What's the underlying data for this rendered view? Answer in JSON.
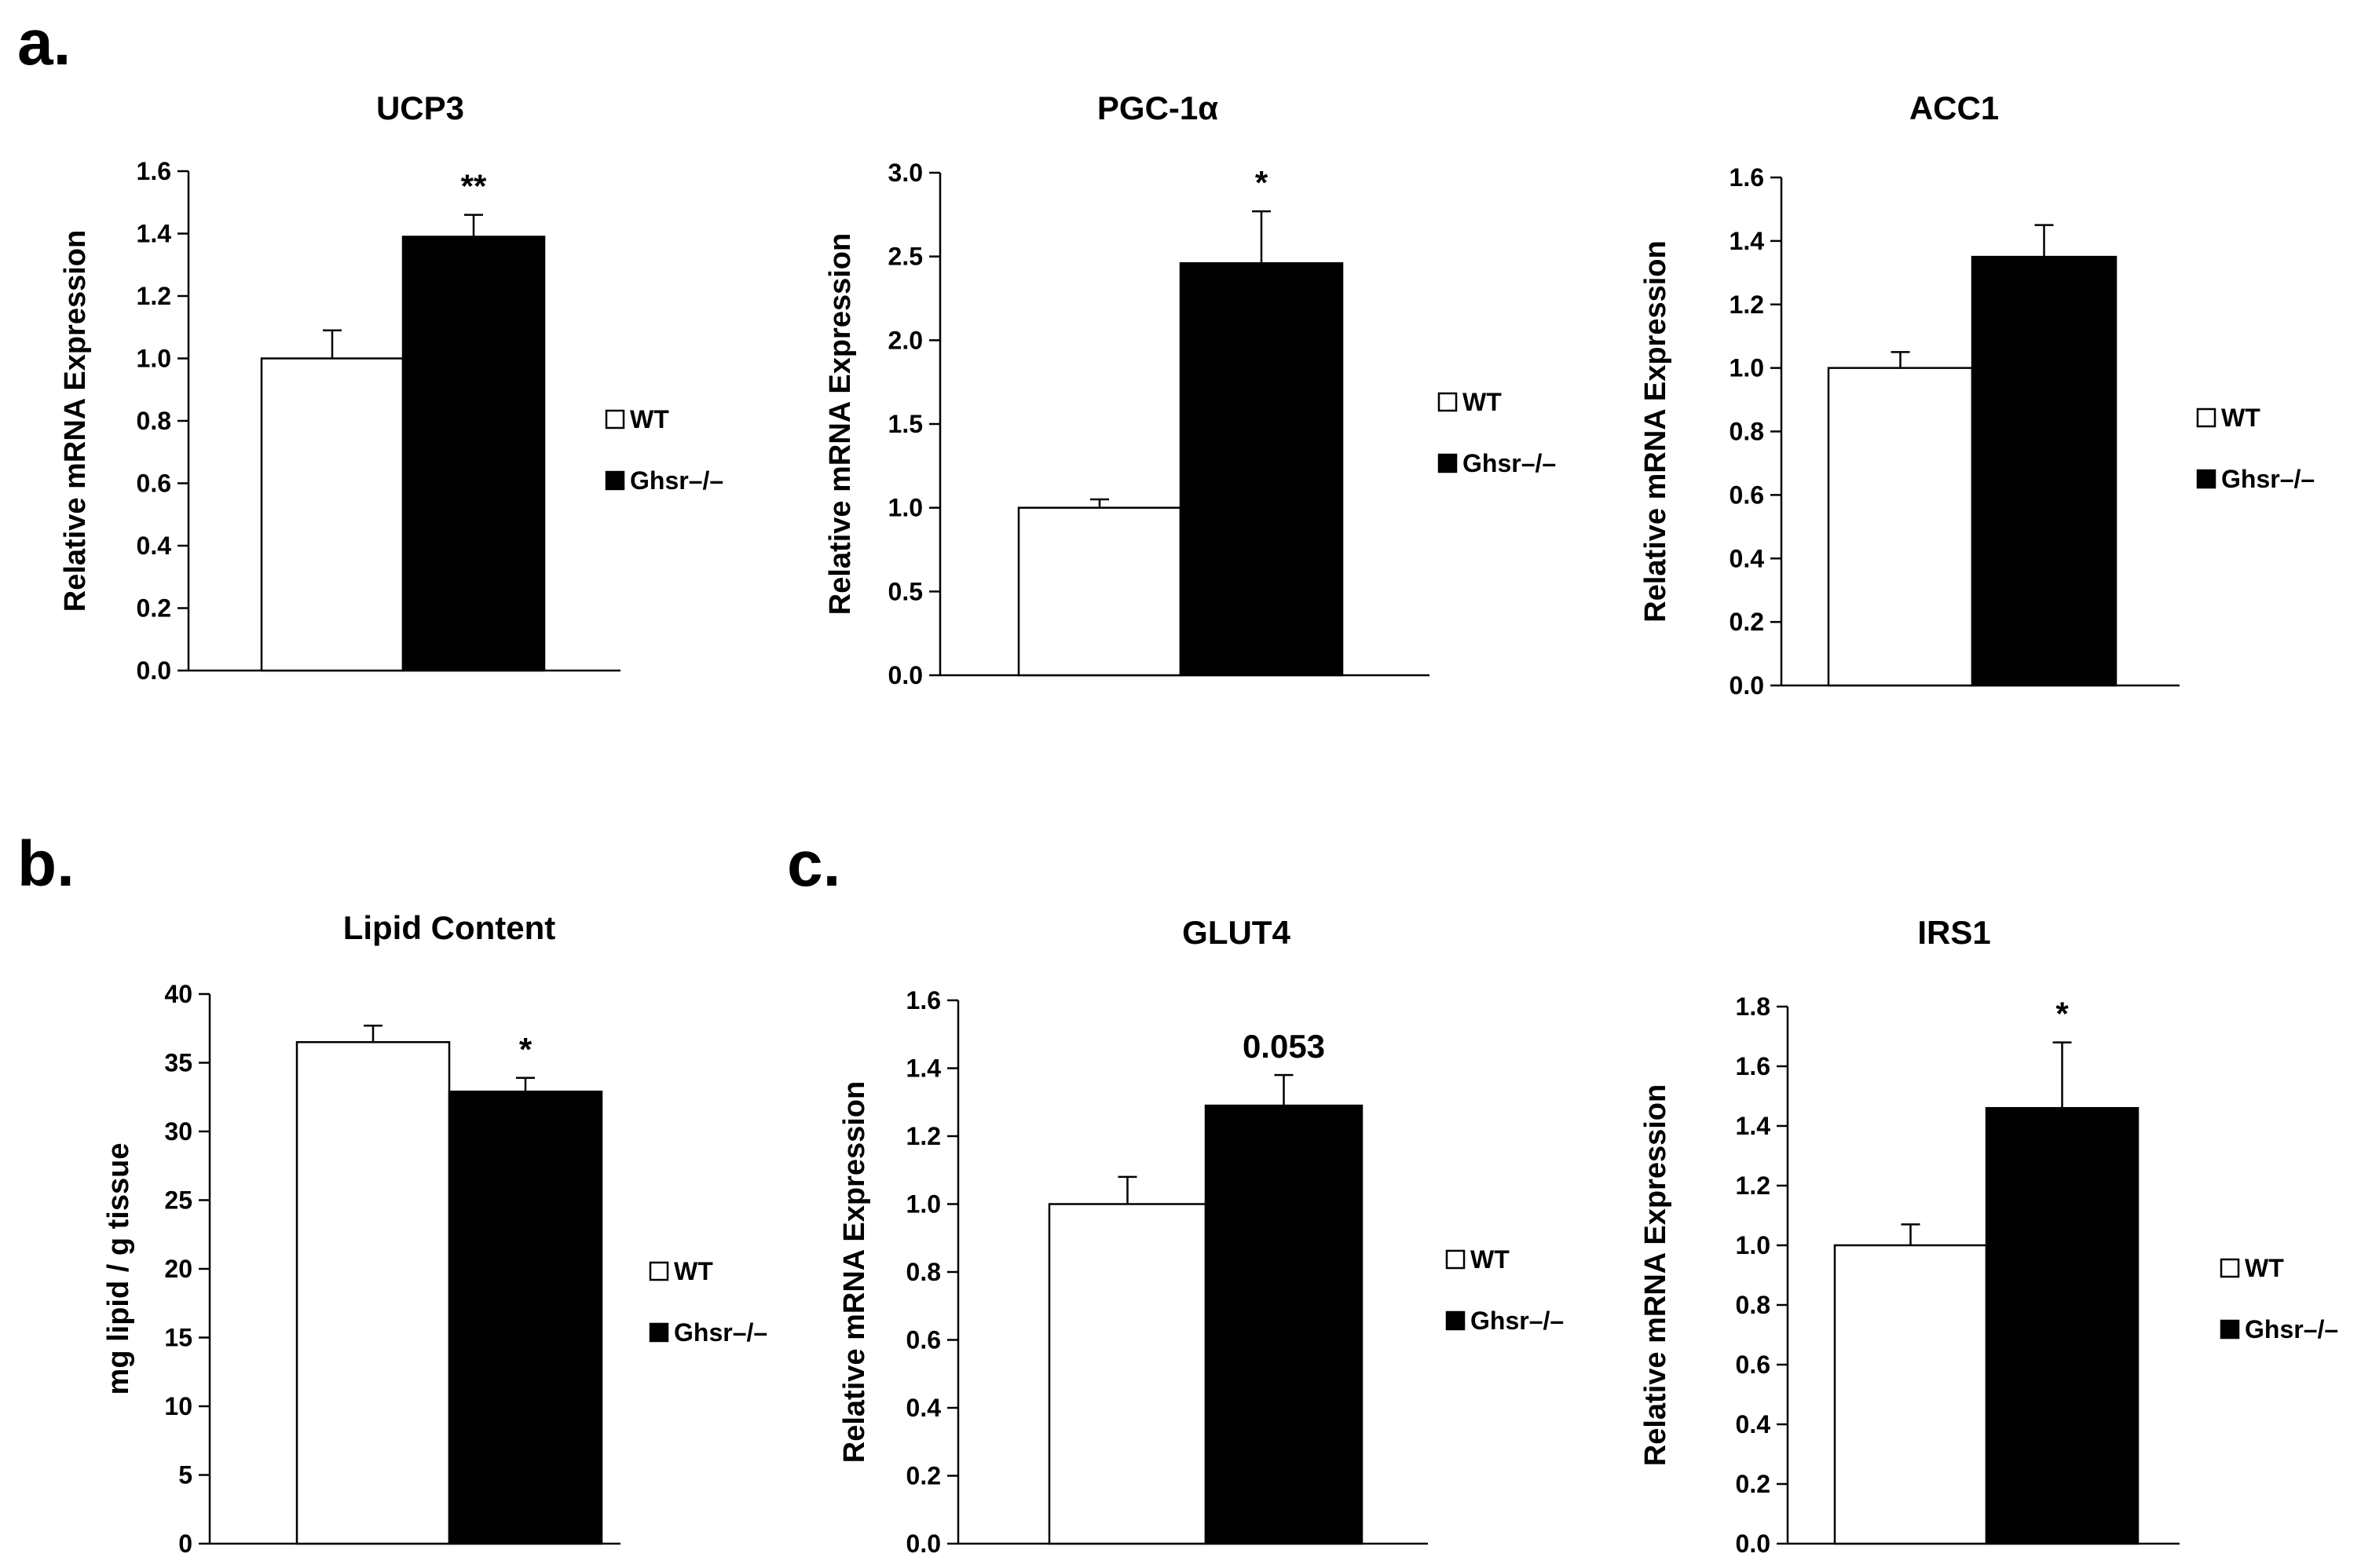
{
  "panel_labels": [
    "a.",
    "b.",
    "c."
  ],
  "legend": {
    "items": [
      {
        "label": "WT",
        "color": "#ffffff"
      },
      {
        "label": "Ghsr–/–",
        "color": "#000000"
      }
    ]
  },
  "chart_data": [
    {
      "type": "bar",
      "title": "UCP3",
      "ylabel": "Relative mRNA Expression",
      "xlabel": "",
      "ylim": [
        0,
        1.6
      ],
      "yticks": [
        "0.0",
        "0.2",
        "0.4",
        "0.6",
        "0.8",
        "1.0",
        "1.2",
        "1.4",
        "1.6"
      ],
      "categories": [
        "WT",
        "Ghsr–/–"
      ],
      "values": [
        1.0,
        1.39
      ],
      "errors": [
        0.09,
        0.07
      ],
      "colors": [
        "#ffffff",
        "#000000"
      ],
      "annotation": "**",
      "annotation_on": 1
    },
    {
      "type": "bar",
      "title": "PGC-1α",
      "ylabel": "Relative mRNA Expression",
      "xlabel": "",
      "ylim": [
        0,
        3.0
      ],
      "yticks": [
        "0.0",
        "0.5",
        "1.0",
        "1.5",
        "2.0",
        "2.5",
        "3.0"
      ],
      "categories": [
        "WT",
        "Ghsr–/–"
      ],
      "values": [
        1.0,
        2.46
      ],
      "errors": [
        0.05,
        0.31
      ],
      "colors": [
        "#ffffff",
        "#000000"
      ],
      "annotation": "*",
      "annotation_on": 1
    },
    {
      "type": "bar",
      "title": "ACC1",
      "ylabel": "Relative mRNA Expression",
      "xlabel": "",
      "ylim": [
        0,
        1.6
      ],
      "yticks": [
        "0.0",
        "0.2",
        "0.4",
        "0.6",
        "0.8",
        "1.0",
        "1.2",
        "1.4",
        "1.6"
      ],
      "categories": [
        "WT",
        "Ghsr–/–"
      ],
      "values": [
        1.0,
        1.35
      ],
      "errors": [
        0.05,
        0.1
      ],
      "colors": [
        "#ffffff",
        "#000000"
      ],
      "annotation": "",
      "annotation_on": 1
    },
    {
      "type": "bar",
      "title": "Lipid Content",
      "ylabel": "mg lipid / g tissue",
      "xlabel": "",
      "ylim": [
        0,
        40
      ],
      "yticks": [
        "0",
        "5",
        "10",
        "15",
        "20",
        "25",
        "30",
        "35",
        "40"
      ],
      "categories": [
        "WT",
        "Ghsr–/–"
      ],
      "values": [
        36.5,
        32.9
      ],
      "errors": [
        1.2,
        1.0
      ],
      "colors": [
        "#ffffff",
        "#000000"
      ],
      "annotation": "*",
      "annotation_on": 1
    },
    {
      "type": "bar",
      "title": "GLUT4",
      "ylabel": "Relative mRNA Expression",
      "xlabel": "",
      "ylim": [
        0,
        1.6
      ],
      "yticks": [
        "0.0",
        "0.2",
        "0.4",
        "0.6",
        "0.8",
        "1.0",
        "1.2",
        "1.4",
        "1.6"
      ],
      "categories": [
        "WT",
        "Ghsr–/–"
      ],
      "values": [
        1.0,
        1.29
      ],
      "errors": [
        0.08,
        0.09
      ],
      "colors": [
        "#ffffff",
        "#000000"
      ],
      "annotation": "0.053",
      "annotation_on": 1
    },
    {
      "type": "bar",
      "title": "IRS1",
      "ylabel": "Relative mRNA Expression",
      "xlabel": "",
      "ylim": [
        0,
        1.8
      ],
      "yticks": [
        "0.0",
        "0.2",
        "0.4",
        "0.6",
        "0.8",
        "1.0",
        "1.2",
        "1.4",
        "1.6",
        "1.8"
      ],
      "categories": [
        "WT",
        "Ghsr–/–"
      ],
      "values": [
        1.0,
        1.46
      ],
      "errors": [
        0.07,
        0.22
      ],
      "colors": [
        "#ffffff",
        "#000000"
      ],
      "annotation": "*",
      "annotation_on": 1
    }
  ]
}
